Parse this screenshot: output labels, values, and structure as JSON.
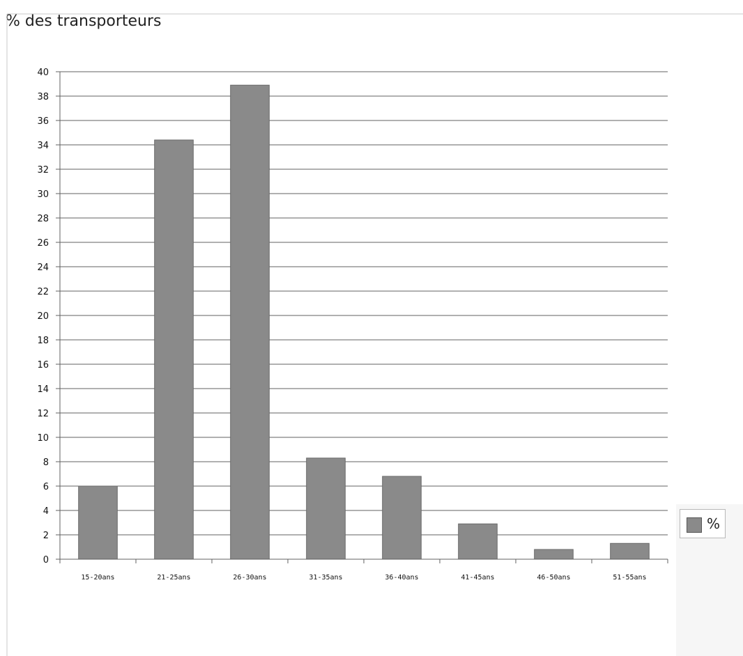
{
  "chart_data": {
    "type": "bar",
    "title": "% des transporteurs",
    "categories": [
      "15-20ans",
      "21-25ans",
      "26-30ans",
      "31-35ans",
      "36-40ans",
      "41-45ans",
      "46-50ans",
      "51-55ans"
    ],
    "series": [
      {
        "name": "%",
        "color": "#8a8a8a",
        "values": [
          6,
          34.4,
          38.9,
          8.3,
          6.8,
          2.9,
          0.8,
          1.3
        ]
      }
    ],
    "ylim": [
      0,
      40
    ],
    "yticks": [
      0,
      2,
      4,
      6,
      8,
      10,
      12,
      14,
      16,
      18,
      20,
      22,
      24,
      26,
      28,
      30,
      32,
      34,
      36,
      38,
      40
    ],
    "grid": true,
    "legend_position": "right",
    "xlabel": "",
    "ylabel": ""
  }
}
